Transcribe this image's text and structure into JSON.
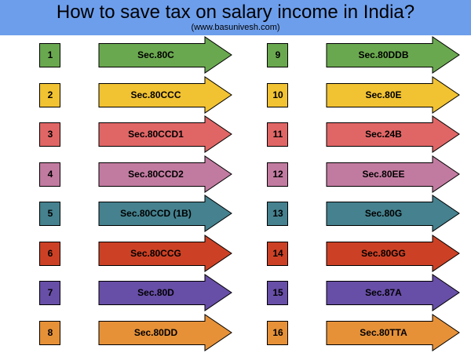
{
  "header": {
    "title": "How to save tax on salary income in India?",
    "subtitle": "(www.basunivesh.com)",
    "background": "#6d9eeb"
  },
  "items": [
    {
      "num": "1",
      "label": "Sec.80C",
      "color": "#6aa84f"
    },
    {
      "num": "2",
      "label": "Sec.80CCC",
      "color": "#f1c232"
    },
    {
      "num": "3",
      "label": "Sec.80CCD1",
      "color": "#e06666"
    },
    {
      "num": "4",
      "label": "Sec.80CCD2",
      "color": "#c27ba0"
    },
    {
      "num": "5",
      "label": "Sec.80CCD (1B)",
      "color": "#45818e"
    },
    {
      "num": "6",
      "label": "Sec.80CCG",
      "color": "#cc4125"
    },
    {
      "num": "7",
      "label": "Sec.80D",
      "color": "#674ea7"
    },
    {
      "num": "8",
      "label": "Sec.80DD",
      "color": "#e69138"
    },
    {
      "num": "9",
      "label": "Sec.80DDB",
      "color": "#6aa84f"
    },
    {
      "num": "10",
      "label": "Sec.80E",
      "color": "#f1c232"
    },
    {
      "num": "11",
      "label": "Sec.24B",
      "color": "#e06666"
    },
    {
      "num": "12",
      "label": "Sec.80EE",
      "color": "#c27ba0"
    },
    {
      "num": "13",
      "label": "Sec.80G",
      "color": "#45818e"
    },
    {
      "num": "14",
      "label": "Sec.80GG",
      "color": "#cc4125"
    },
    {
      "num": "15",
      "label": "Sec.87A",
      "color": "#674ea7"
    },
    {
      "num": "16",
      "label": "Sec.80TTA",
      "color": "#e69138"
    }
  ]
}
